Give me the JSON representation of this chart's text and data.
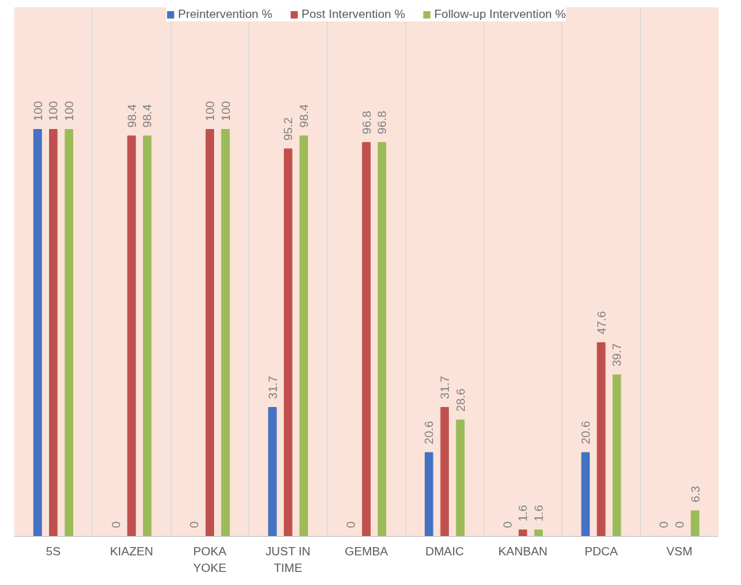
{
  "chart_data": {
    "type": "bar",
    "categories": [
      "5S",
      "KIAZEN",
      "POKA YOKE",
      "JUST IN TIME",
      "GEMBA",
      "DMAIC",
      "KANBAN",
      "PDCA",
      "VSM"
    ],
    "series": [
      {
        "name": "Preintervention %",
        "color": "#4472c4",
        "values": [
          100,
          0,
          0,
          31.7,
          0,
          20.6,
          0,
          20.6,
          0
        ]
      },
      {
        "name": "Post Intervention %",
        "color": "#c0504d",
        "values": [
          100,
          98.4,
          100,
          95.2,
          96.8,
          31.7,
          1.6,
          47.6,
          0
        ]
      },
      {
        "name": "Follow-up Intervention %",
        "color": "#9bbb59",
        "values": [
          100,
          98.4,
          100,
          98.4,
          96.8,
          28.6,
          1.6,
          39.7,
          6.3
        ]
      }
    ],
    "data_labels": true,
    "legend": "top",
    "grid": "x"
  }
}
